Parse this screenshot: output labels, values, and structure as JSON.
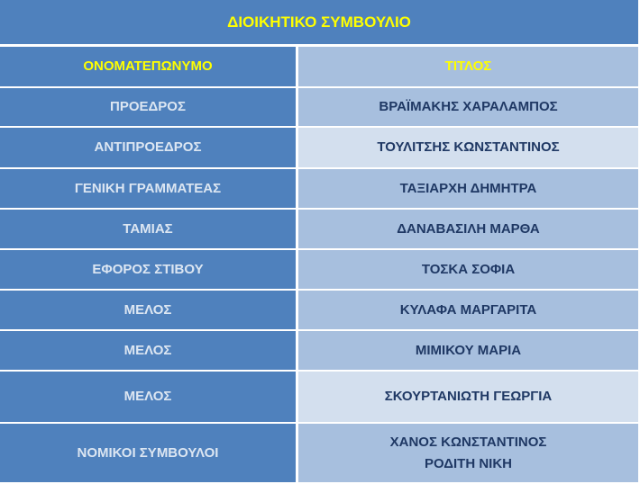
{
  "title": "ΔΙΟΙΚΗΤΙΚΟ ΣΥΜΒΟΥΛΙΟ",
  "headers": [
    "ΟΝΟΜΑΤΕΠΩΝΥΜΟ",
    "ΤΙΤΛΟΣ"
  ],
  "rows": [
    {
      "role": "ΠΡΟΕΔΡΟΣ",
      "name": "ΒΡΑΪΜΑΚΗΣ ΧΑΡΑΛΑΜΠΟΣ"
    },
    {
      "role": "ΑΝΤΙΠΡΟΕΔΡΟΣ",
      "name": "ΤΟΥΛΙΤΣΗΣ ΚΩΝΣΤΑΝΤΙΝΟΣ"
    },
    {
      "role": "ΓΕΝΙΚΗ ΓΡΑΜΜΑΤΕΑΣ",
      "name": "ΤΑΞΙΑΡΧΗ ΔΗΜΗΤΡΑ"
    },
    {
      "role": "ΤΑΜΙΑΣ",
      "name": "ΔΑΝΑΒΑΣΙΛΗ ΜΑΡΘΑ"
    },
    {
      "role": "ΕΦΟΡΟΣ ΣΤΙΒΟΥ",
      "name": "ΤΟΣΚΑ ΣΟΦΙΑ"
    },
    {
      "role": "ΜΕΛΟΣ",
      "name": "ΚΥΛΑΦΑ ΜΑΡΓΑΡΙΤΑ"
    },
    {
      "role": "ΜΕΛΟΣ",
      "name": "ΜΙΜΙΚΟΥ ΜΑΡΙΑ"
    },
    {
      "role": "ΜΕΛΟΣ",
      "name": "ΣΚΟΥΡΤΑΝΙΩΤΗ ΓΕΩΡΓΙΑ"
    },
    {
      "role": "ΝΟΜΙΚΟΙ ΣΥΜΒΟΥΛΟΙ",
      "name": "ΧΑΝΟΣ ΚΩΝΣΤΑΝΤΙΝΟΣ",
      "name2": "ΡΟΔΙΤΗ ΝΙΚΗ"
    }
  ],
  "colors": {
    "dark": "#4F81BD",
    "light": "#A7BFDE",
    "lighter": "#D3DFEE",
    "heading_text": "#FFFF00"
  }
}
